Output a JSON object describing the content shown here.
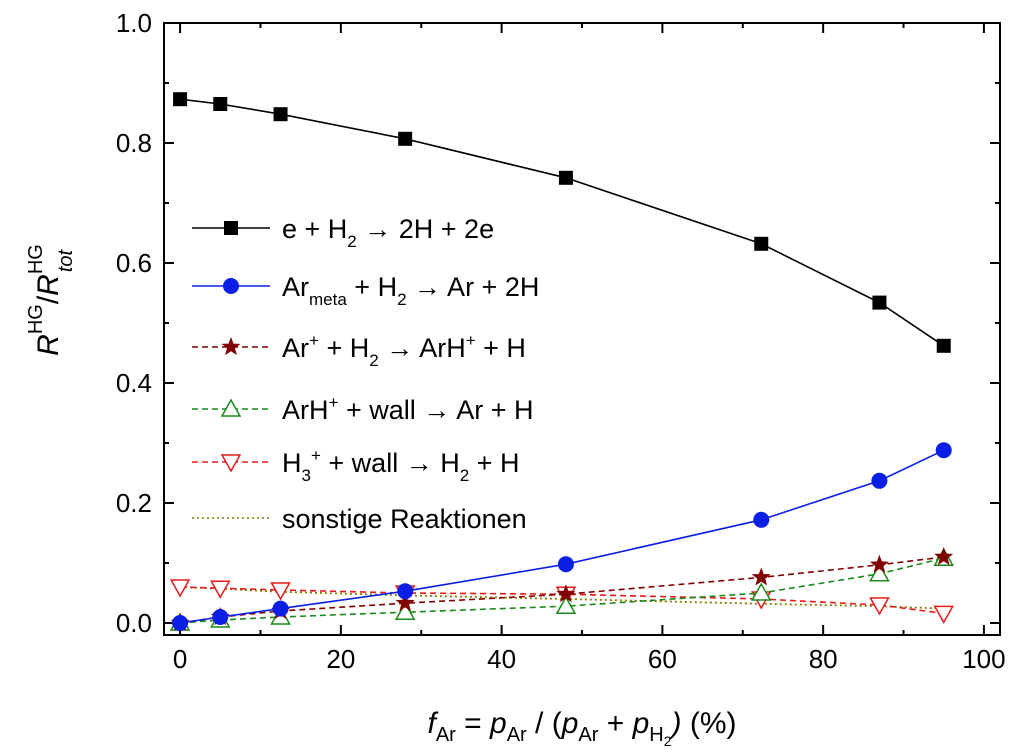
{
  "chart_data": {
    "type": "line",
    "x": [
      0,
      5,
      12.5,
      28,
      48,
      72.3,
      87,
      95
    ],
    "xlim": [
      -2,
      102
    ],
    "ylim": [
      -0.02,
      1.0
    ],
    "xticks": [
      0,
      20,
      40,
      60,
      80,
      100
    ],
    "yticks": [
      0.0,
      0.2,
      0.4,
      0.6,
      0.8,
      1.0
    ],
    "xtick_labels": [
      "0",
      "20",
      "40",
      "60",
      "80",
      "100"
    ],
    "ytick_labels": [
      "0.0",
      "0.2",
      "0.4",
      "0.6",
      "0.8",
      "1.0"
    ],
    "xlabel": {
      "f": "f",
      "f_sub": "Ar",
      "eq": " = ",
      "p1": "p",
      "p1_sub": "Ar",
      "mid": " / (",
      "p2": "p",
      "p2_sub": "Ar",
      "plus": " + ",
      "p3": "p",
      "p3_sub": "H",
      "p3_subsub": "2",
      "close": ")",
      "unit": " (%)"
    },
    "ylabel": {
      "r1": "R",
      "r1_sup": "HG",
      "slash": "/",
      "r2": "R",
      "r2_sup": "HG",
      "r2_sub": "tot"
    },
    "legend_position": "center-left",
    "grid": false,
    "series": [
      {
        "id": "e",
        "color": "#000000",
        "marker": "square",
        "filled": true,
        "dash": "",
        "values": [
          0.873,
          0.865,
          0.848,
          0.807,
          0.742,
          0.632,
          0.534,
          0.462
        ],
        "legend": [
          {
            "t": "e + H"
          },
          {
            "t": "2",
            "s": "sub"
          },
          {
            "t": " → 2H + 2e"
          }
        ]
      },
      {
        "id": "armeta",
        "color": "#0a1fe6",
        "marker": "circle",
        "filled": true,
        "dash": "",
        "values": [
          0.0,
          0.01,
          0.024,
          0.053,
          0.098,
          0.172,
          0.237,
          0.288
        ],
        "legend": [
          {
            "t": "Ar"
          },
          {
            "t": "meta",
            "s": "sub"
          },
          {
            "t": " + H"
          },
          {
            "t": "2",
            "s": "sub"
          },
          {
            "t": " → Ar + 2H"
          }
        ]
      },
      {
        "id": "arplus",
        "color": "#800000",
        "marker": "star",
        "filled": true,
        "dash": "6,4",
        "values": [
          0.0,
          0.01,
          0.02,
          0.033,
          0.048,
          0.076,
          0.097,
          0.11
        ],
        "legend": [
          {
            "t": "Ar"
          },
          {
            "t": "+",
            "s": "sup"
          },
          {
            "t": " + H"
          },
          {
            "t": "2",
            "s": "sub"
          },
          {
            "t": " → ArH"
          },
          {
            "t": "+",
            "s": "sup"
          },
          {
            "t": " + H"
          }
        ]
      },
      {
        "id": "arh",
        "color": "#1a8a1a",
        "marker": "triangle-up",
        "filled": false,
        "dash": "6,4",
        "values": [
          0.0,
          0.005,
          0.01,
          0.018,
          0.028,
          0.05,
          0.082,
          0.108
        ],
        "legend": [
          {
            "t": "ArH"
          },
          {
            "t": "+",
            "s": "sup"
          },
          {
            "t": " + wall → Ar + H"
          }
        ]
      },
      {
        "id": "h3",
        "color": "#e61a1a",
        "marker": "triangle-down",
        "filled": false,
        "dash": "6,4",
        "values": [
          0.06,
          0.058,
          0.055,
          0.05,
          0.048,
          0.04,
          0.03,
          0.016
        ],
        "legend": [
          {
            "t": "H"
          },
          {
            "t": "3",
            "s": "sub"
          },
          {
            "t": "+",
            "s": "sup"
          },
          {
            "t": " + wall → H"
          },
          {
            "t": "2",
            "s": "sub"
          },
          {
            "t": " + H"
          }
        ]
      },
      {
        "id": "sonst",
        "color": "#8a7a00",
        "marker": "none",
        "filled": false,
        "dash": "2,3",
        "values": [
          0.06,
          0.057,
          0.052,
          0.046,
          0.04,
          0.032,
          0.028,
          0.024
        ],
        "legend": [
          {
            "t": "sonstige Reaktionen"
          }
        ]
      }
    ]
  }
}
